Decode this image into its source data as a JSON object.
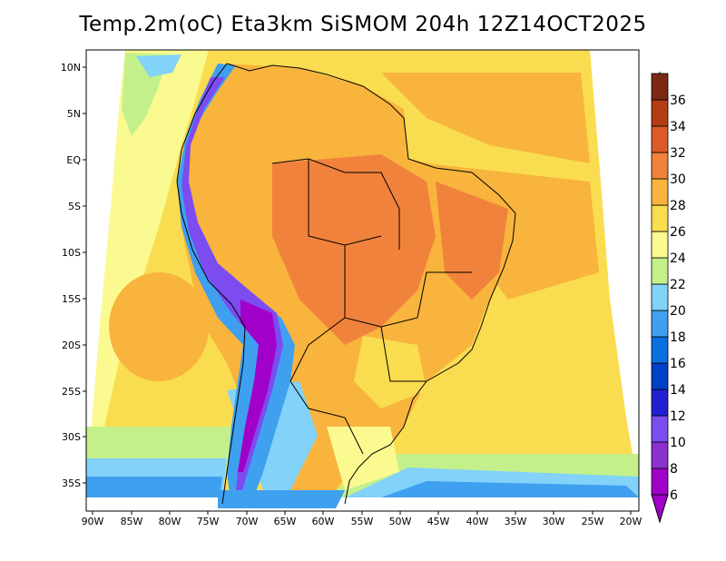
{
  "title": "Temp.2m(oC) Eta3km SiSMOM 204h 12Z14OCT2025",
  "map": {
    "lat_labels": [
      "10N",
      "5N",
      "EQ",
      "5S",
      "10S",
      "15S",
      "20S",
      "25S",
      "30S",
      "35S"
    ],
    "lon_labels": [
      "90W",
      "85W",
      "80W",
      "75W",
      "70W",
      "65W",
      "60W",
      "55W",
      "50W",
      "45W",
      "40W",
      "35W",
      "30W",
      "25W",
      "20W"
    ]
  },
  "colorbar": {
    "unit": "oC",
    "levels": [
      "6",
      "8",
      "10",
      "12",
      "14",
      "16",
      "18",
      "20",
      "22",
      "24",
      "26",
      "28",
      "30",
      "32",
      "34",
      "36"
    ],
    "colors": [
      "#a000c8",
      "#8c30d0",
      "#7c4cf0",
      "#2020d0",
      "#0040c8",
      "#0a70e0",
      "#3fa0f0",
      "#82d2fa",
      "#c4f08c",
      "#fafa90",
      "#fadc50",
      "#f8b43c",
      "#f0823c",
      "#dc5a28",
      "#b43c14",
      "#7a2814"
    ]
  }
}
